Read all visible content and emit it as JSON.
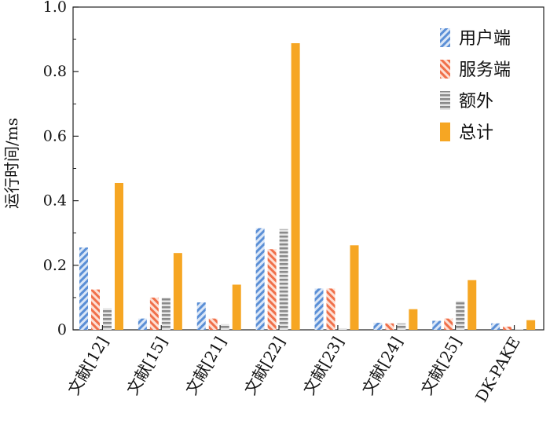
{
  "chart_data": {
    "type": "bar",
    "title": "",
    "xlabel": "",
    "ylabel": "运行时间/ms",
    "ylim": [
      0,
      1.0
    ],
    "yticks": [
      "0",
      "0.2",
      "0.4",
      "0.6",
      "0.8",
      "1.0"
    ],
    "grid": false,
    "legend_position": "top-right",
    "categories": [
      "文献[12]",
      "文献[15]",
      "文献[21]",
      "文献[22]",
      "文献[23]",
      "文献[24]",
      "文献[25]",
      "DK-PAKE"
    ],
    "series": [
      {
        "name": "用户端",
        "color": "#5b8fd6",
        "pattern": "diag-right",
        "values": [
          0.255,
          0.035,
          0.085,
          0.315,
          0.128,
          0.022,
          0.028,
          0.02
        ]
      },
      {
        "name": "服务端",
        "color": "#f0704a",
        "pattern": "diag-left",
        "values": [
          0.125,
          0.1,
          0.035,
          0.25,
          0.128,
          0.02,
          0.035,
          0.01
        ]
      },
      {
        "name": "额外",
        "color": "#8a8a8a",
        "pattern": "horizontal",
        "values": [
          0.067,
          0.1,
          0.018,
          0.312,
          0.005,
          0.02,
          0.09,
          0.0
        ]
      },
      {
        "name": "总计",
        "color": "#f6a623",
        "pattern": "solid",
        "values": [
          0.455,
          0.238,
          0.14,
          0.888,
          0.262,
          0.064,
          0.154,
          0.03
        ]
      }
    ]
  }
}
